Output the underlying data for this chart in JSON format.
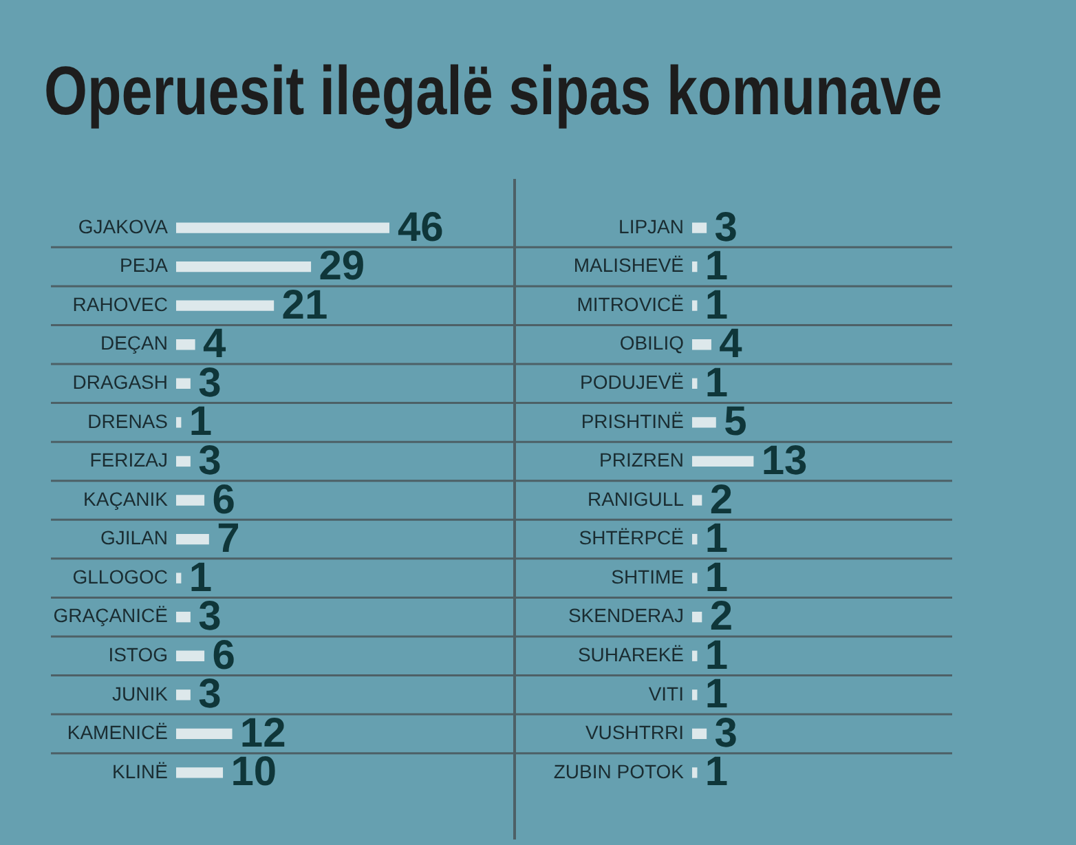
{
  "chart_data": [
    {
      "type": "bar",
      "title": "Operuesit ilegalë sipas komunave",
      "orientation": "horizontal",
      "categories": [
        "GJAKOVA",
        "PEJA",
        "RAHOVEC",
        "DEÇAN",
        "DRAGASH",
        "DRENAS",
        "FERIZAJ",
        "KAÇANIK",
        "GJILAN",
        "GLLOGOC",
        "GRAÇANICË",
        "ISTOG",
        "JUNIK",
        "KAMENICË",
        "KLINË"
      ],
      "values": [
        46,
        29,
        21,
        4,
        3,
        1,
        3,
        6,
        7,
        1,
        3,
        6,
        3,
        12,
        10
      ],
      "color": "#dde8eb",
      "data_labels": true,
      "grid": "y"
    },
    {
      "type": "bar",
      "orientation": "horizontal",
      "categories": [
        "LIPJAN",
        "MALISHEVË",
        "MITROVICË",
        "OBILIQ",
        "PODUJEVË",
        "PRISHTINË",
        "PRIZREN",
        "RANIGULL",
        "SHTËRPCË",
        "SHTIME",
        "SKENDERAJ",
        "SUHAREKË",
        "VITI",
        "VUSHTRRI",
        "ZUBIN POTOK"
      ],
      "values": [
        3,
        1,
        1,
        4,
        1,
        5,
        13,
        2,
        1,
        1,
        2,
        1,
        1,
        3,
        1
      ],
      "color": "#dde8eb",
      "data_labels": true,
      "grid": "y"
    }
  ]
}
